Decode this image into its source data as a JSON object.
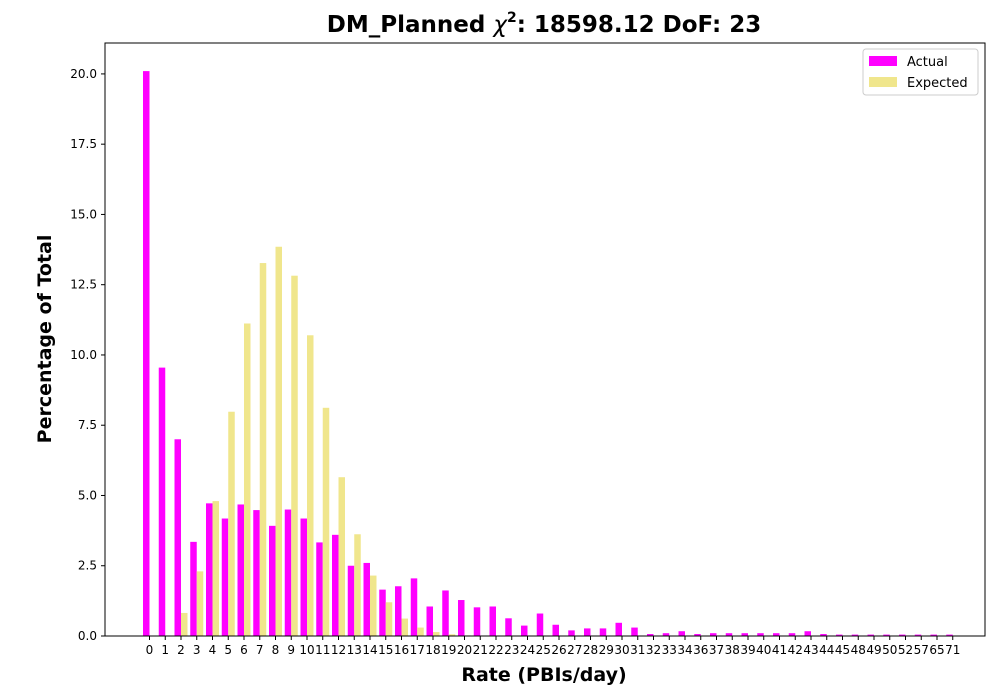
{
  "chart_data": {
    "type": "bar",
    "title": {
      "prefix": "DM_Planned ",
      "chi": "χ",
      "sup": "2",
      "suffix": ": 18598.12 DoF: 23"
    },
    "xlabel": "Rate (PBIs/day)",
    "ylabel": "Percentage of Total",
    "ylim": [
      0,
      21.1
    ],
    "yticks": [
      "0.0",
      "2.5",
      "5.0",
      "7.5",
      "10.0",
      "12.5",
      "15.0",
      "17.5",
      "20.0"
    ],
    "legend_position": "top-right",
    "categories": [
      "0",
      "1",
      "2",
      "3",
      "4",
      "5",
      "6",
      "7",
      "8",
      "9",
      "10",
      "11",
      "12",
      "13",
      "14",
      "15",
      "16",
      "17",
      "18",
      "19",
      "20",
      "21",
      "22",
      "23",
      "24",
      "25",
      "26",
      "27",
      "28",
      "29",
      "30",
      "31",
      "32",
      "33",
      "34",
      "36",
      "37",
      "38",
      "39",
      "40",
      "41",
      "42",
      "43",
      "44",
      "45",
      "48",
      "49",
      "50",
      "52",
      "57",
      "65",
      "71"
    ],
    "series": [
      {
        "name": "Actual",
        "color": "#ff00ff",
        "values": [
          20.1,
          9.55,
          7.0,
          3.35,
          4.72,
          4.18,
          4.68,
          4.48,
          3.92,
          4.5,
          4.18,
          3.33,
          3.6,
          2.5,
          2.6,
          1.65,
          1.77,
          2.05,
          1.05,
          1.62,
          1.28,
          1.02,
          1.05,
          0.63,
          0.37,
          0.8,
          0.4,
          0.2,
          0.27,
          0.27,
          0.47,
          0.3,
          0.07,
          0.1,
          0.17,
          0.07,
          0.1,
          0.1,
          0.1,
          0.1,
          0.1,
          0.1,
          0.17,
          0.07,
          0.05,
          0.05,
          0.05,
          0.05,
          0.05,
          0.05,
          0.05,
          0.05
        ]
      },
      {
        "name": "Expected",
        "color": "#f0e68c",
        "values": [
          0,
          0,
          0.82,
          2.3,
          4.8,
          7.98,
          11.12,
          13.27,
          13.85,
          12.82,
          10.7,
          8.12,
          5.65,
          3.62,
          2.15,
          1.2,
          0.62,
          0.3,
          0.14,
          0.06,
          0.02,
          0.01,
          0,
          0,
          0,
          0,
          0,
          0,
          0,
          0,
          0,
          0,
          0,
          0,
          0,
          0,
          0,
          0,
          0,
          0,
          0,
          0,
          0,
          0,
          0,
          0,
          0,
          0,
          0,
          0,
          0,
          0
        ]
      }
    ]
  }
}
